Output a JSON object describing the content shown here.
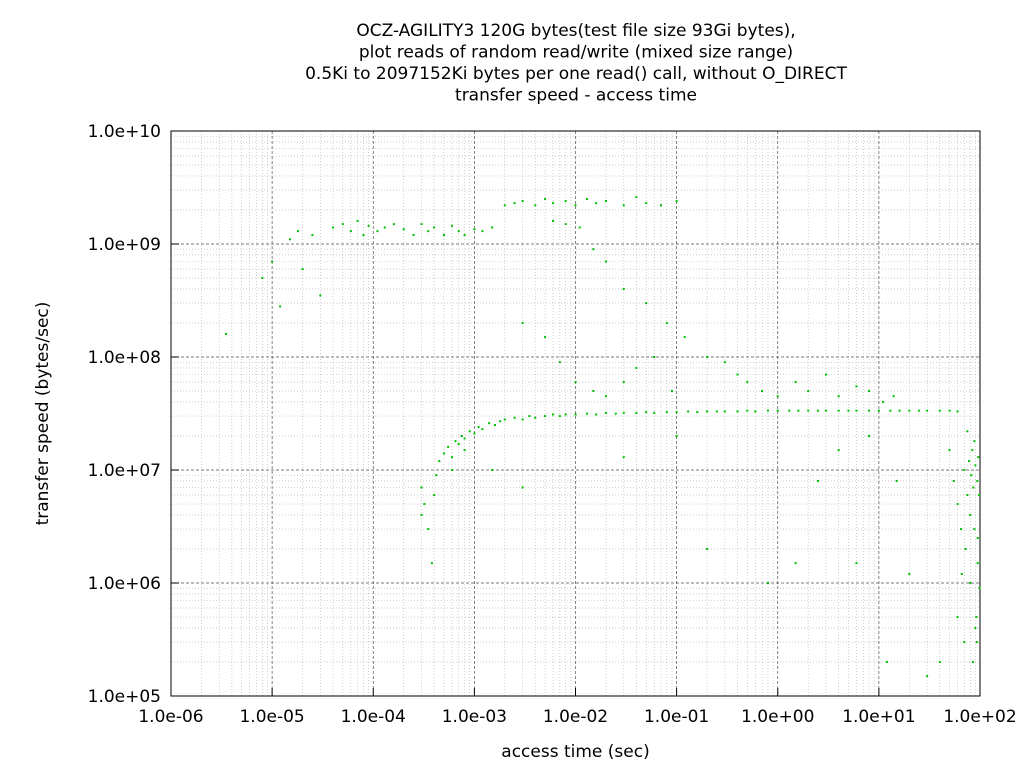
{
  "chart_data": {
    "type": "scatter",
    "title_lines": [
      "OCZ-AGILITY3 120G bytes(test file size 93Gi bytes),",
      "plot reads of random read/write (mixed size range)",
      "0.5Ki to 2097152Ki bytes per one read() call, without O_DIRECT",
      "transfer speed - access time"
    ],
    "xlabel": "access time (sec)",
    "ylabel": "transfer speed (bytes/sec)",
    "x_scale": "log",
    "y_scale": "log",
    "xlim": [
      1e-06,
      100
    ],
    "ylim": [
      100000.0,
      10000000000.0
    ],
    "x_ticks": [
      1e-06,
      1e-05,
      0.0001,
      0.001,
      0.01,
      0.1,
      1.0,
      10.0,
      100.0
    ],
    "x_tick_labels": [
      "1.0e-06",
      "1.0e-05",
      "1.0e-04",
      "1.0e-03",
      "1.0e-02",
      "1.0e-01",
      "1.0e+00",
      "1.0e+01",
      "1.0e+02"
    ],
    "y_ticks": [
      100000.0,
      1000000.0,
      10000000.0,
      100000000.0,
      1000000000.0,
      10000000000.0
    ],
    "y_tick_labels": [
      "1.0e+05",
      "1.0e+06",
      "1.0e+07",
      "1.0e+08",
      "1.0e+09",
      "1.0e+10"
    ],
    "grid": true,
    "series": [
      {
        "color": "#00c000",
        "points": [
          [
            3.5e-06,
            160000000.0
          ],
          [
            8e-06,
            500000000.0
          ],
          [
            1e-05,
            700000000.0
          ],
          [
            1.2e-05,
            280000000.0
          ],
          [
            1.5e-05,
            1100000000.0
          ],
          [
            1.8e-05,
            1300000000.0
          ],
          [
            2e-05,
            600000000.0
          ],
          [
            2.5e-05,
            1200000000.0
          ],
          [
            3e-05,
            350000000.0
          ],
          [
            4e-05,
            1400000000.0
          ],
          [
            5e-05,
            1500000000.0
          ],
          [
            6e-05,
            1300000000.0
          ],
          [
            7e-05,
            1600000000.0
          ],
          [
            8e-05,
            1200000000.0
          ],
          [
            9e-05,
            1450000000.0
          ],
          [
            0.00011,
            1300000000.0
          ],
          [
            0.00013,
            1400000000.0
          ],
          [
            0.00016,
            1500000000.0
          ],
          [
            0.0002,
            1350000000.0
          ],
          [
            0.00025,
            1200000000.0
          ],
          [
            0.0003,
            1500000000.0
          ],
          [
            0.00035,
            1300000000.0
          ],
          [
            0.0004,
            1400000000.0
          ],
          [
            0.0005,
            1200000000.0
          ],
          [
            0.0006,
            1450000000.0
          ],
          [
            0.0007,
            1300000000.0
          ],
          [
            0.0008,
            1200000000.0
          ],
          [
            0.001,
            1350000000.0
          ],
          [
            0.0012,
            1300000000.0
          ],
          [
            0.0015,
            1400000000.0
          ],
          [
            0.002,
            2200000000.0
          ],
          [
            0.0025,
            2300000000.0
          ],
          [
            0.003,
            2400000000.0
          ],
          [
            0.004,
            2200000000.0
          ],
          [
            0.005,
            2500000000.0
          ],
          [
            0.006,
            2300000000.0
          ],
          [
            0.008,
            2400000000.0
          ],
          [
            0.01,
            2200000000.0
          ],
          [
            0.013,
            2500000000.0
          ],
          [
            0.016,
            2300000000.0
          ],
          [
            0.02,
            2400000000.0
          ],
          [
            0.03,
            2200000000.0
          ],
          [
            0.04,
            2600000000.0
          ],
          [
            0.05,
            2300000000.0
          ],
          [
            0.07,
            2200000000.0
          ],
          [
            0.1,
            2400000000.0
          ],
          [
            0.006,
            1600000000.0
          ],
          [
            0.008,
            1500000000.0
          ],
          [
            0.011,
            1400000000.0
          ],
          [
            0.015,
            900000000.0
          ],
          [
            0.02,
            700000000.0
          ],
          [
            0.03,
            400000000.0
          ],
          [
            0.05,
            300000000.0
          ],
          [
            0.08,
            200000000.0
          ],
          [
            0.12,
            150000000.0
          ],
          [
            0.2,
            100000000.0
          ],
          [
            0.3,
            90000000.0
          ],
          [
            0.4,
            70000000.0
          ],
          [
            0.5,
            60000000.0
          ],
          [
            0.7,
            50000000.0
          ],
          [
            1,
            45000000.0
          ],
          [
            1.5,
            60000000.0
          ],
          [
            2,
            50000000.0
          ],
          [
            3,
            70000000.0
          ],
          [
            4,
            45000000.0
          ],
          [
            6,
            55000000.0
          ],
          [
            8,
            50000000.0
          ],
          [
            11.0,
            40000000.0
          ],
          [
            14.0,
            45000000.0
          ],
          [
            0.003,
            200000000.0
          ],
          [
            0.005,
            150000000.0
          ],
          [
            0.007,
            90000000.0
          ],
          [
            0.01,
            60000000.0
          ],
          [
            0.015,
            50000000.0
          ],
          [
            0.02,
            45000000.0
          ],
          [
            0.03,
            60000000.0
          ],
          [
            0.04,
            80000000.0
          ],
          [
            0.06,
            100000000.0
          ],
          [
            0.09,
            50000000.0
          ],
          [
            0.0003,
            7000000.0
          ],
          [
            0.00032,
            5000000.0
          ],
          [
            0.00035,
            3000000.0
          ],
          [
            0.00038,
            1500000.0
          ],
          [
            0.00042,
            9000000.0
          ],
          [
            0.00045,
            12000000.0
          ],
          [
            0.0005,
            14000000.0
          ],
          [
            0.00055,
            16000000.0
          ],
          [
            0.0006,
            13000000.0
          ],
          [
            0.00065,
            18000000.0
          ],
          [
            0.0007,
            17000000.0
          ],
          [
            0.00075,
            20000000.0
          ],
          [
            0.0008,
            19000000.0
          ],
          [
            0.0009,
            22000000.0
          ],
          [
            0.001,
            21000000.0
          ],
          [
            0.0011,
            24000000.0
          ],
          [
            0.0012,
            23000000.0
          ],
          [
            0.0014,
            26000000.0
          ],
          [
            0.0016,
            25000000.0
          ],
          [
            0.0018,
            27000000.0
          ],
          [
            0.002,
            28000000.0
          ],
          [
            0.0025,
            29000000.0
          ],
          [
            0.003,
            28000000.0
          ],
          [
            0.0035,
            30000000.0
          ],
          [
            0.004,
            29000000.0
          ],
          [
            0.005,
            30000000.0
          ],
          [
            0.006,
            31000000.0
          ],
          [
            0.007,
            30000000.0
          ],
          [
            0.008,
            31000000.0
          ],
          [
            0.01,
            31000000.0
          ],
          [
            0.013,
            31500000.0
          ],
          [
            0.016,
            31000000.0
          ],
          [
            0.02,
            32000000.0
          ],
          [
            0.025,
            31500000.0
          ],
          [
            0.03,
            32000000.0
          ],
          [
            0.04,
            32000000.0
          ],
          [
            0.05,
            32500000.0
          ],
          [
            0.06,
            32000000.0
          ],
          [
            0.08,
            32500000.0
          ],
          [
            0.1,
            32500000.0
          ],
          [
            0.13,
            33000000.0
          ],
          [
            0.16,
            32500000.0
          ],
          [
            0.2,
            33000000.0
          ],
          [
            0.25,
            33000000.0
          ],
          [
            0.3,
            33000000.0
          ],
          [
            0.4,
            33000000.0
          ],
          [
            0.5,
            33500000.0
          ],
          [
            0.6,
            33000000.0
          ],
          [
            0.8,
            33500000.0
          ],
          [
            1,
            33500000.0
          ],
          [
            1.3,
            33500000.0
          ],
          [
            1.6,
            33500000.0
          ],
          [
            2,
            33500000.0
          ],
          [
            2.5,
            33500000.0
          ],
          [
            3,
            33500000.0
          ],
          [
            4,
            33500000.0
          ],
          [
            5,
            33500000.0
          ],
          [
            6,
            33500000.0
          ],
          [
            8,
            33500000.0
          ],
          [
            10,
            33500000.0
          ],
          [
            13,
            33500000.0
          ],
          [
            16,
            33500000.0
          ],
          [
            20,
            33500000.0
          ],
          [
            25,
            33500000.0
          ],
          [
            30,
            33500000.0
          ],
          [
            40,
            33500000.0
          ],
          [
            50,
            33500000.0
          ],
          [
            60,
            33000000.0
          ],
          [
            0.0003,
            4000000.0
          ],
          [
            0.0004,
            6000000.0
          ],
          [
            0.0006,
            10000000.0
          ],
          [
            0.0008,
            15000000.0
          ],
          [
            0.0015,
            10000000.0
          ],
          [
            0.003,
            7000000.0
          ],
          [
            0.03,
            13000000.0
          ],
          [
            0.1,
            20000000.0
          ],
          [
            0.2,
            2000000.0
          ],
          [
            0.8,
            1000000.0
          ],
          [
            1.5,
            1500000.0
          ],
          [
            2.5,
            8000000.0
          ],
          [
            4,
            15000000.0
          ],
          [
            6,
            1500000.0
          ],
          [
            8,
            20000000.0
          ],
          [
            12,
            200000.0
          ],
          [
            15,
            8000000.0
          ],
          [
            20,
            1200000.0
          ],
          [
            30,
            150000.0
          ],
          [
            40,
            200000.0
          ],
          [
            50,
            15000000.0
          ],
          [
            55,
            8000000.0
          ],
          [
            60,
            5000000.0
          ],
          [
            65,
            3000000.0
          ],
          [
            70,
            10000000.0
          ],
          [
            72,
            2000000.0
          ],
          [
            75,
            6000000.0
          ],
          [
            78,
            12000000.0
          ],
          [
            80,
            4000000.0
          ],
          [
            82,
            9000000.0
          ],
          [
            84,
            15000000.0
          ],
          [
            86,
            7000000.0
          ],
          [
            88,
            3000000.0
          ],
          [
            90,
            11000000.0
          ],
          [
            92,
            500000.0
          ],
          [
            94,
            8000000.0
          ],
          [
            95,
            2500000.0
          ],
          [
            96,
            13000000.0
          ],
          [
            98,
            6000000.0
          ],
          [
            99,
            900000.0
          ],
          [
            60,
            500000.0
          ],
          [
            70,
            300000.0
          ],
          [
            80,
            1000000.0
          ],
          [
            85,
            200000.0
          ],
          [
            90,
            400000.0
          ],
          [
            95,
            1500000.0
          ],
          [
            75,
            22000000.0
          ],
          [
            88,
            18000000.0
          ],
          [
            93,
            300000.0
          ],
          [
            66,
            1200000.0
          ]
        ]
      }
    ]
  }
}
